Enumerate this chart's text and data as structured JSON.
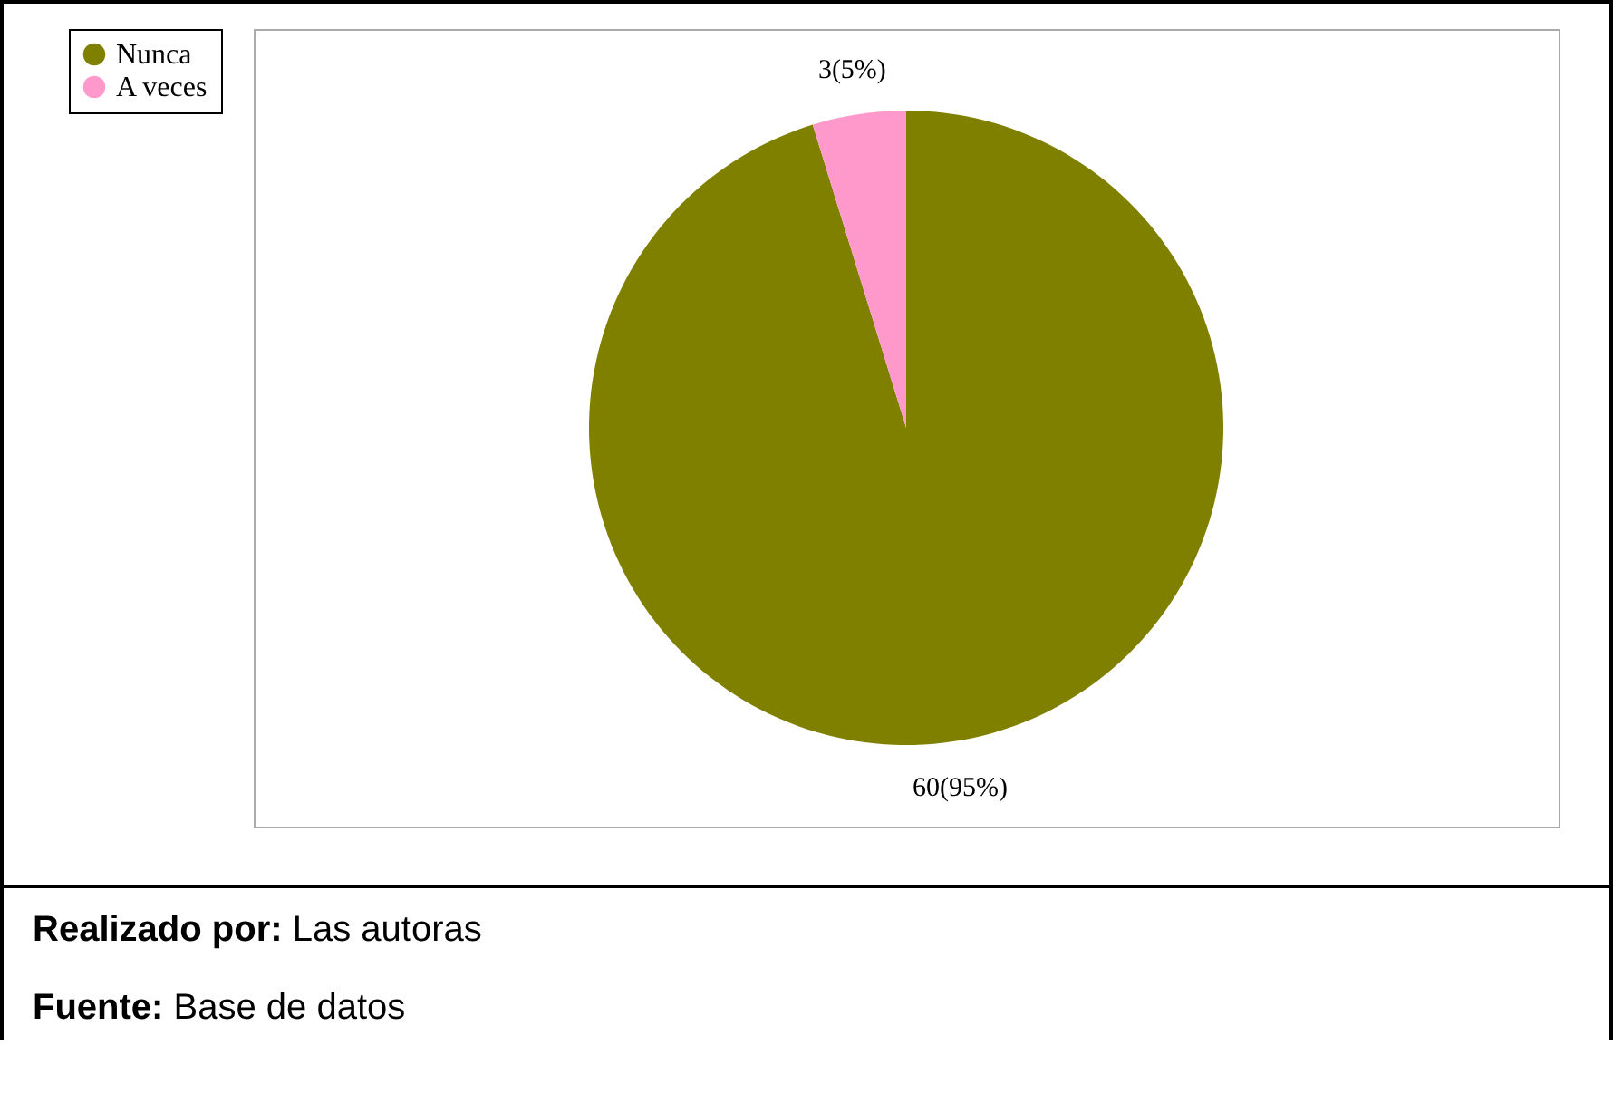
{
  "chart_data": {
    "type": "pie",
    "categories": [
      "Nunca",
      "A veces"
    ],
    "values": [
      60,
      3
    ],
    "colors": [
      "#808000",
      "#ff99cc"
    ],
    "value_labels": [
      "60(95%)",
      "3(5%)"
    ],
    "legend": "left",
    "annotations": [
      "Realizado por: Las autoras",
      "Fuente: Base de datos"
    ]
  }
}
